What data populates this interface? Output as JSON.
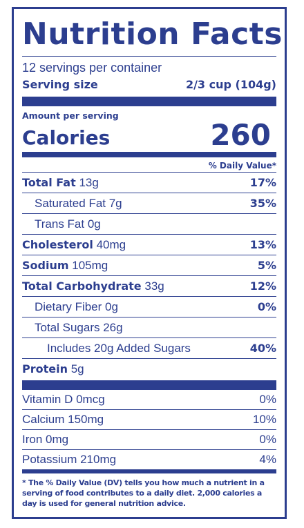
{
  "title": "Nutrition Facts",
  "servings": "12 servings per container",
  "serving_size": {
    "label": "Serving size",
    "value": "2/3 cup (104g)"
  },
  "amount_per_serving": "Amount per serving",
  "calories": {
    "label": "Calories",
    "value": "260"
  },
  "dv_header": "% Daily Value*",
  "nutrients": [
    {
      "name": "Total Fat",
      "amount": "13g",
      "dv": "17%"
    },
    {
      "name": "Saturated Fat 7g",
      "dv": "35%"
    },
    {
      "name": "Trans Fat 0g",
      "dv": ""
    },
    {
      "name": "Cholesterol",
      "amount": "40mg",
      "dv": "13%"
    },
    {
      "name": "Sodium",
      "amount": "105mg",
      "dv": "5%"
    },
    {
      "name": "Total Carbohydrate",
      "amount": "33g",
      "dv": "12%"
    },
    {
      "name": "Dietary Fiber 0g",
      "dv": "0%"
    },
    {
      "name": "Total Sugars 26g",
      "dv": ""
    },
    {
      "name": "Includes 20g Added Sugars",
      "dv": "40%"
    },
    {
      "name": "Protein",
      "amount": "5g",
      "dv": ""
    }
  ],
  "vitamins": [
    {
      "name": "Vitamin D 0mcg",
      "dv": "0%"
    },
    {
      "name": "Calcium 150mg",
      "dv": "10%"
    },
    {
      "name": "Iron 0mg",
      "dv": "0%"
    },
    {
      "name": "Potassium 210mg",
      "dv": "4%"
    }
  ],
  "footnote": "* The % Daily Value (DV) tells you how much a nutrient in a serving of food contributes to a daily diet. 2,000 calories a day is used for general nutrition advice.",
  "colors": {
    "primary": "#2c3e8f",
    "background": "#ffffff"
  }
}
